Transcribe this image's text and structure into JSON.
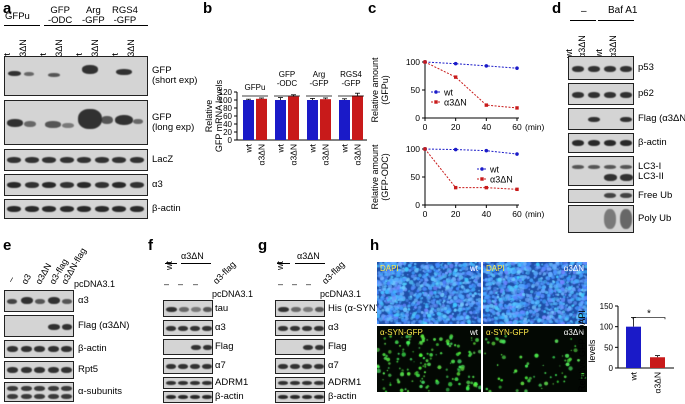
{
  "panels": {
    "a": "a",
    "b": "b",
    "c": "c",
    "d": "d",
    "e": "e",
    "f": "f",
    "g": "g",
    "h": "h"
  },
  "panel_a": {
    "constructs": [
      "GFPu",
      "GFP\n-ODC",
      "Arg\n-GFP",
      "RGS4\n-GFP"
    ],
    "lanes": [
      "wt",
      "α3ΔN",
      "wt",
      "α3ΔN",
      "wt",
      "α3ΔN",
      "wt",
      "α3ΔN"
    ],
    "blots": [
      "GFP\n(short exp)",
      "GFP\n(long exp)",
      "LacZ",
      "α3",
      "β-actin"
    ]
  },
  "panel_d": {
    "header_minus": "–",
    "header_baf": "Baf A1",
    "lanes": [
      "wt",
      "α3ΔN",
      "wt",
      "α3ΔN"
    ],
    "blots": [
      "p53",
      "p62",
      "Flag (α3ΔN)",
      "β-actin",
      "LC3-I",
      "LC3-II",
      "Free Ub",
      "Poly Ub"
    ]
  },
  "panel_e": {
    "lanes": [
      "–",
      "α3",
      "α3ΔN",
      "α3-flag",
      "α3ΔN-flag"
    ],
    "vector": "pcDNA3.1",
    "blots": [
      "α3",
      "Flag (α3ΔN)",
      "β-actin",
      "Rpt5",
      "α-subunits"
    ]
  },
  "panel_f": {
    "groups": [
      "wt",
      "α3ΔN"
    ],
    "lane_flag": "α3-flag",
    "lane_dash": "–",
    "vector": "pcDNA3.1",
    "blots": [
      "tau",
      "α3",
      "Flag",
      "α7",
      "ADRM1",
      "β-actin"
    ]
  },
  "panel_g": {
    "groups": [
      "wt",
      "α3ΔN"
    ],
    "lane_flag": "α3-flag",
    "lane_dash": "–",
    "vector": "pcDNA3.1",
    "blots": [
      "His (α-SYN)",
      "α3",
      "Flag",
      "α7",
      "ADRM1",
      "β-actin"
    ]
  },
  "panel_h": {
    "images": [
      {
        "stain": "DAPI",
        "genotype": "wt"
      },
      {
        "stain": "DAPI",
        "genotype": "α3ΔN"
      },
      {
        "stain": "α-SYN-GFP",
        "genotype": "wt"
      },
      {
        "stain": "α-SYN-GFP",
        "genotype": "α3ΔN"
      }
    ],
    "star": "*"
  },
  "colors": {
    "wt": "#1a1ac8",
    "a3dN": "#c81a1a",
    "dapi": "#2b6fd6",
    "gfp": "#3ad23a"
  },
  "chart_data": [
    {
      "panel": "b",
      "type": "bar",
      "categories": [
        "GFPu",
        "GFP\n-ODC",
        "Arg\n-GFP",
        "RGS4\n-GFP"
      ],
      "series": [
        {
          "name": "wt",
          "values": [
            100,
            100,
            100,
            100
          ]
        },
        {
          "name": "α3ΔN",
          "values": [
            103,
            109,
            102,
            111
          ]
        }
      ],
      "errors": [
        [
          2,
          6,
          4,
          3
        ],
        [
          2,
          4,
          3,
          6
        ]
      ],
      "x_tick_labels": [
        "wt",
        "α3ΔN"
      ],
      "ylabel": "Relative\nGFP mRNA levels",
      "ylim": [
        0,
        120
      ],
      "yticks": [
        0,
        20,
        40,
        60,
        80,
        100,
        120
      ]
    },
    {
      "panel": "c-top",
      "type": "line",
      "x": [
        0,
        20,
        40,
        60
      ],
      "series": [
        {
          "name": "wt",
          "values": [
            100,
            97,
            93,
            89
          ]
        },
        {
          "name": "α3ΔN",
          "values": [
            100,
            73,
            23,
            18
          ]
        }
      ],
      "ylabel": "Relative amount\n(GFPu)",
      "xlabel": "(min)",
      "xlim": [
        0,
        60
      ],
      "ylim": [
        0,
        100
      ],
      "yticks": [
        0,
        50,
        100
      ],
      "xticks": [
        0,
        20,
        40,
        60
      ],
      "legend": "middle-left"
    },
    {
      "panel": "c-bottom",
      "type": "line",
      "x": [
        0,
        20,
        40,
        60
      ],
      "series": [
        {
          "name": "wt",
          "values": [
            100,
            99,
            97,
            91
          ]
        },
        {
          "name": "α3ΔN",
          "values": [
            100,
            31,
            31,
            28
          ]
        }
      ],
      "ylabel": "Relative amount\n(GFP-ODC)",
      "xlabel": "(min)",
      "xlim": [
        0,
        60
      ],
      "ylim": [
        0,
        100
      ],
      "yticks": [
        0,
        50,
        100
      ],
      "xticks": [
        0,
        20,
        40,
        60
      ],
      "legend": "middle-right"
    },
    {
      "panel": "h",
      "type": "bar",
      "categories": [
        "wt",
        "α3ΔN"
      ],
      "values": [
        100,
        26
      ],
      "errors": [
        22,
        4
      ],
      "ylabel": "Relative GFP / DAPI\nlevels",
      "ylim": [
        0,
        150
      ],
      "yticks": [
        0,
        50,
        100,
        150
      ]
    }
  ]
}
